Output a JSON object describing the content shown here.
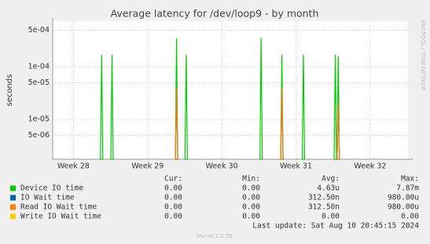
{
  "chart_data": {
    "type": "spike",
    "title": "Average latency for /dev/loop9 - by month",
    "y_label": "seconds",
    "side_text": "RRDTOOL / TOBI OETIKER",
    "log_y": true,
    "grid": true,
    "ylim": [
      1.74e-06,
      0.00074
    ],
    "yticks": [
      {
        "value": 5e-06,
        "label": "5e-06"
      },
      {
        "value": 1e-05,
        "label": "1e-05"
      },
      {
        "value": 5e-05,
        "label": "5e-05"
      },
      {
        "value": 0.0001,
        "label": "1e-04"
      },
      {
        "value": 0.0005,
        "label": "5e-04"
      }
    ],
    "xlim": [
      27.72,
      32.51
    ],
    "xticks": [
      {
        "value": 28,
        "label": "Week 28"
      },
      {
        "value": 29,
        "label": "Week 29"
      },
      {
        "value": 30,
        "label": "Week 30"
      },
      {
        "value": 31,
        "label": "Week 31"
      },
      {
        "value": 32,
        "label": "Week 32"
      }
    ],
    "x": [
      28.38,
      28.52,
      29.39,
      29.52,
      30.53,
      30.81,
      31.1,
      31.53,
      31.57
    ],
    "legend_headers": [
      "Cur:",
      "Min:",
      "Avg:",
      "Max:"
    ],
    "series": [
      {
        "name": "Device IO time",
        "color": "#00cc00",
        "values": [
          0.00017,
          0.00017,
          0.00035,
          0.00017,
          0.00036,
          0.00017,
          0.00017,
          0.00017,
          0.00016
        ],
        "stats": [
          "0.00",
          "0.00",
          "4.63u",
          "7.87m"
        ]
      },
      {
        "name": "IO Wait time",
        "color": "#0066b3",
        "values": [
          null,
          null,
          4e-05,
          null,
          null,
          4e-05,
          null,
          null,
          2e-05
        ],
        "stats": [
          "0.00",
          "0.00",
          "312.50n",
          "980.00u"
        ]
      },
      {
        "name": "Read IO Wait time",
        "color": "#ff8000",
        "values": [
          null,
          null,
          4e-05,
          null,
          null,
          4e-05,
          null,
          null,
          2e-05
        ],
        "stats": [
          "0.00",
          "0.00",
          "312.50n",
          "980.00u"
        ]
      },
      {
        "name": "Write IO Wait time",
        "color": "#ffcc00",
        "values": [
          null,
          null,
          null,
          null,
          null,
          null,
          null,
          null,
          null
        ],
        "stats": [
          "0.00",
          "0.00",
          "0.00",
          "0.00"
        ]
      }
    ],
    "last_update": "Last update: Sat Aug 10 20:45:15 2024",
    "footer": "Munin 2.0.56"
  }
}
